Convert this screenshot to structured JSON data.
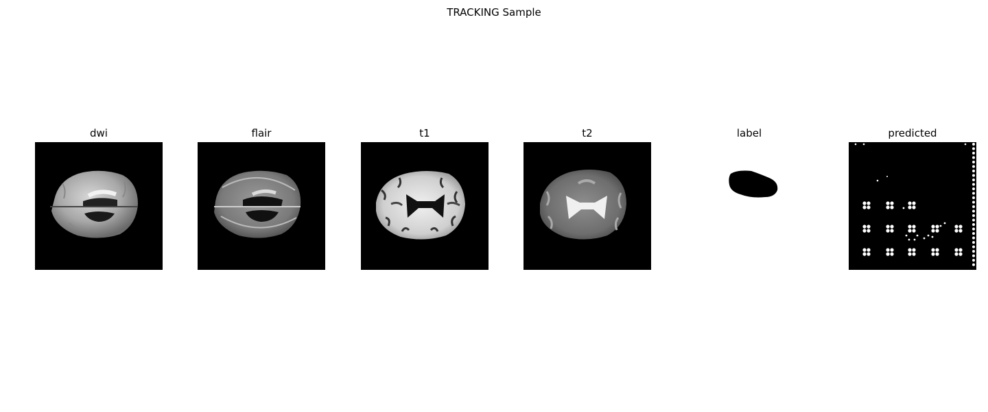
{
  "figure": {
    "title": "TRACKING Sample",
    "panels": [
      {
        "id": "dwi",
        "title": "dwi"
      },
      {
        "id": "flair",
        "title": "flair"
      },
      {
        "id": "t1",
        "title": "t1"
      },
      {
        "id": "t2",
        "title": "t2"
      },
      {
        "id": "label",
        "title": "label"
      },
      {
        "id": "predicted",
        "title": "predicted"
      }
    ]
  }
}
